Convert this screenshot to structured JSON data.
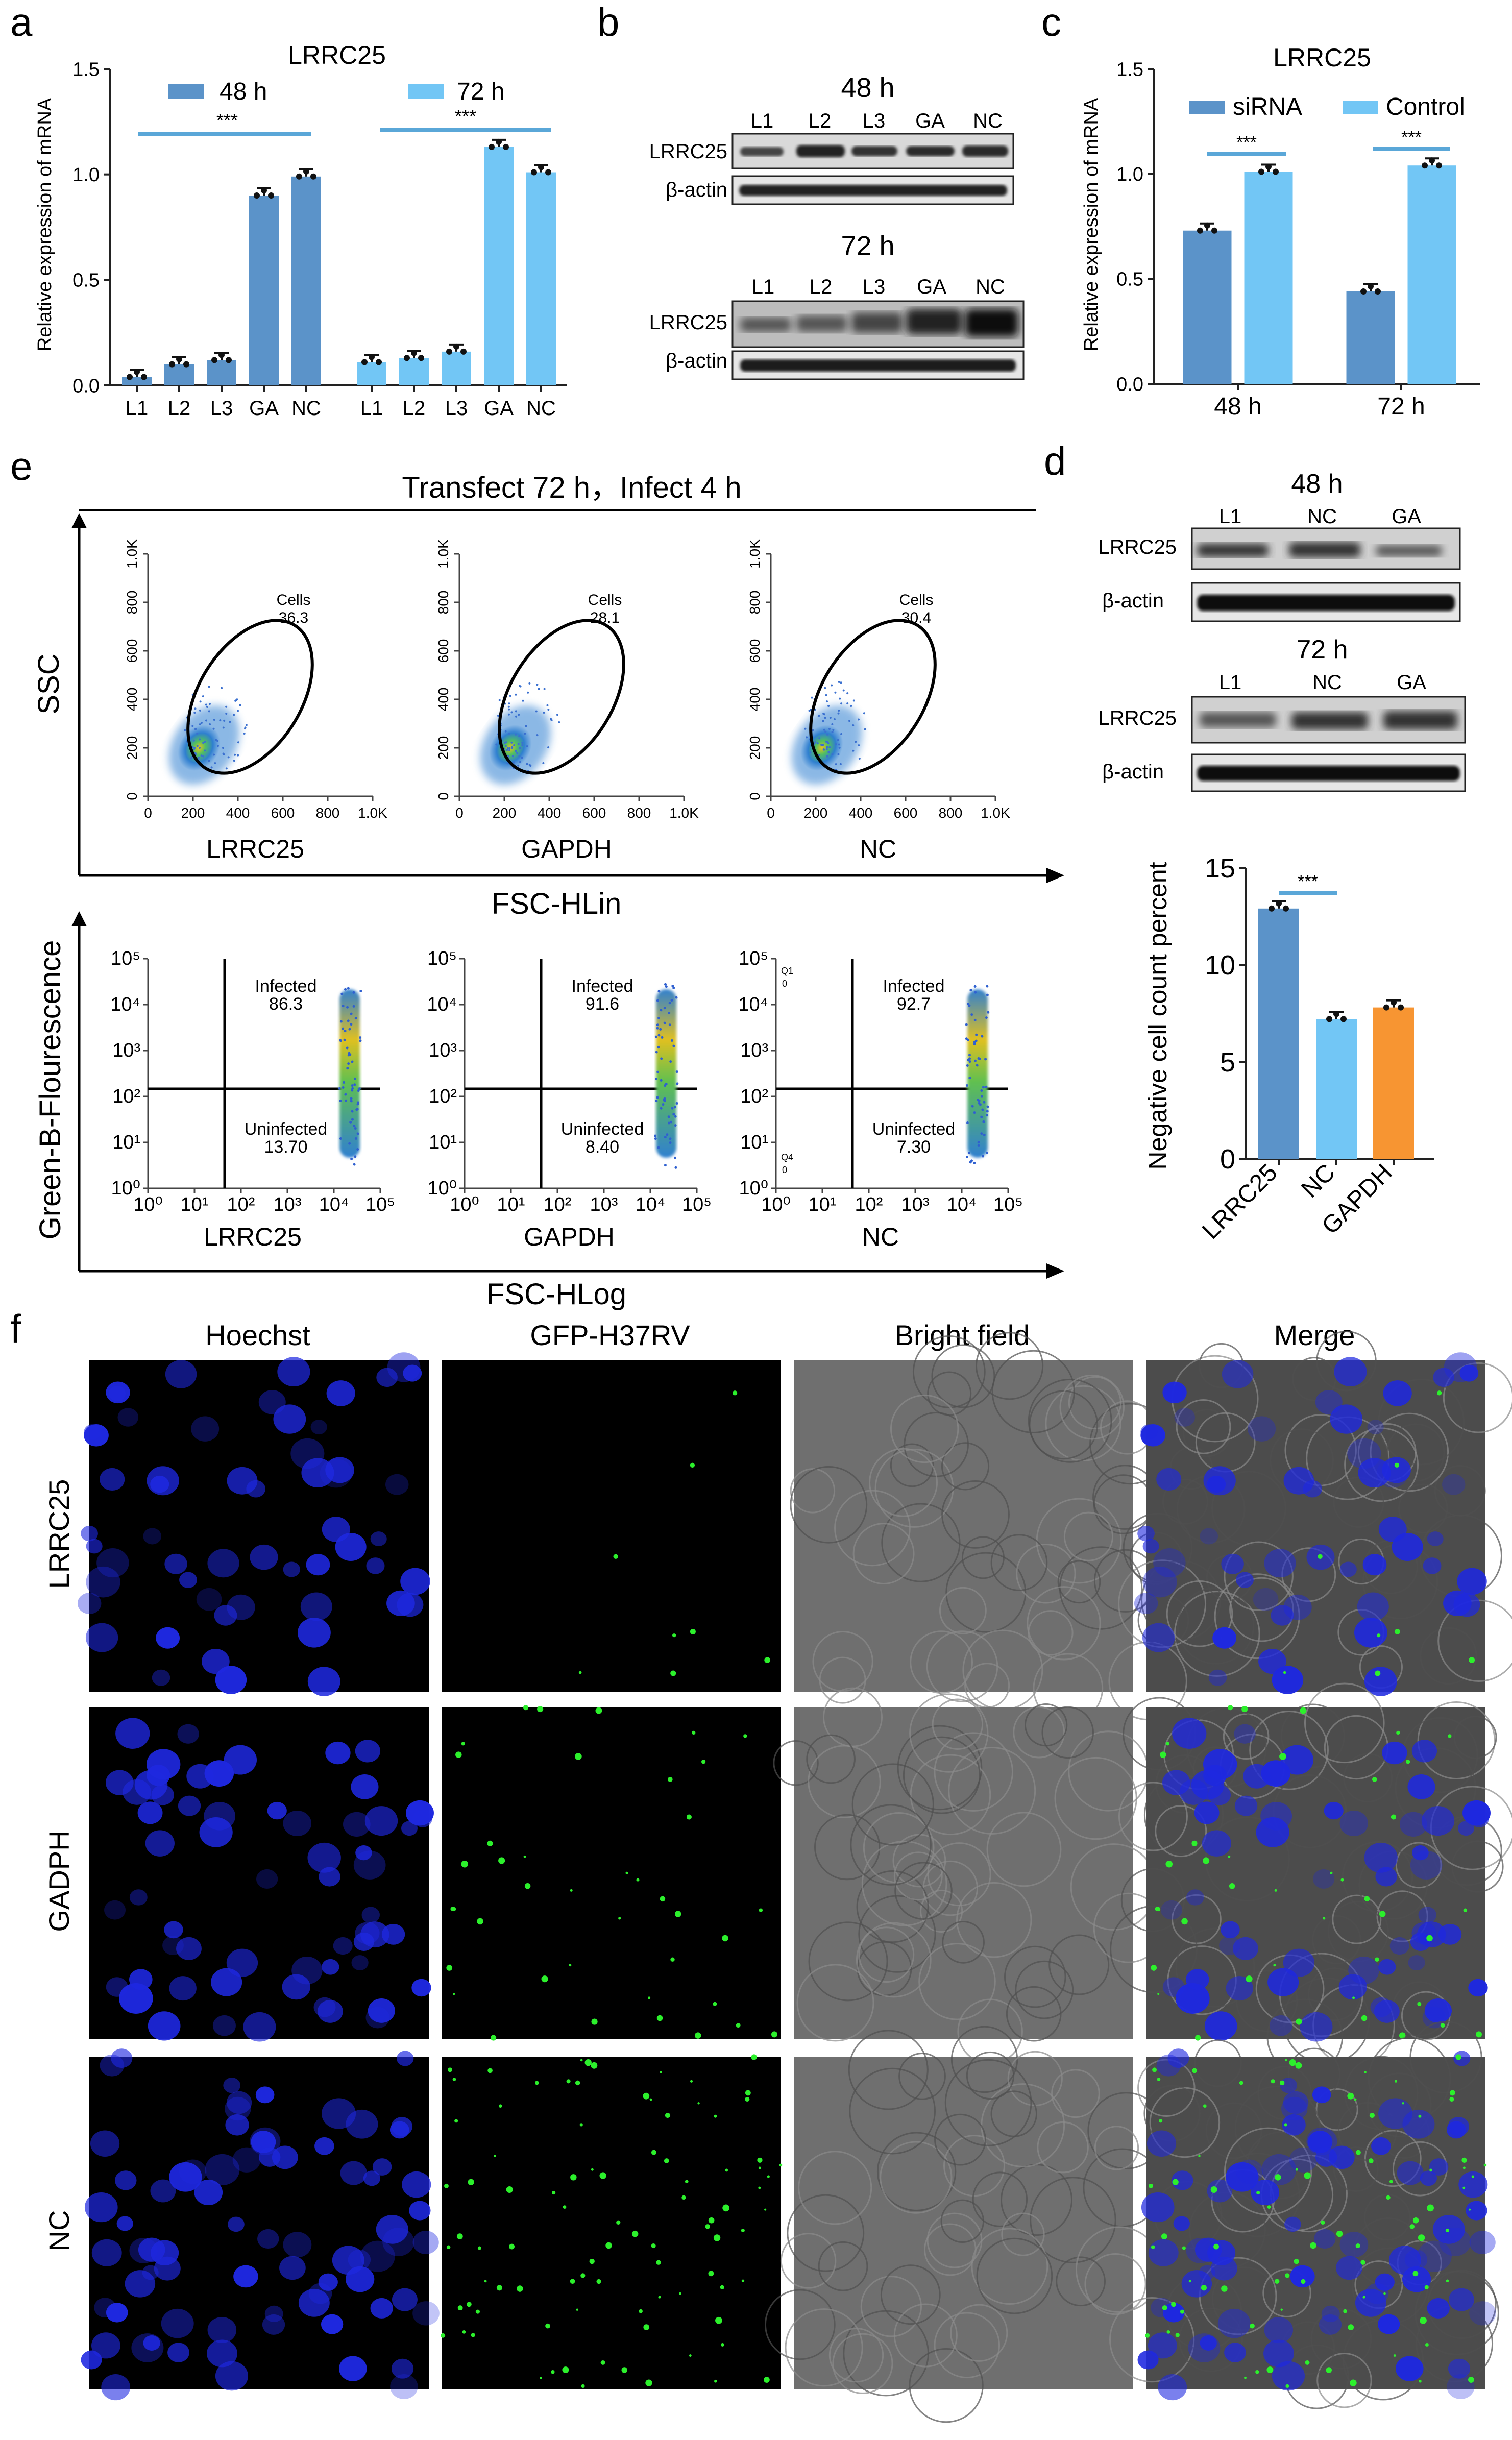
{
  "panels": {
    "a": "a",
    "b": "b",
    "c": "c",
    "d": "d",
    "e": "e",
    "f": "f"
  },
  "colors": {
    "dark_blue": "#5B93C9",
    "light_blue": "#72C6F5",
    "orange": "#F79532",
    "sig_line": "#5AA7D8",
    "fluor_blue": "#1E28E0",
    "fluor_green": "#2CF02C"
  },
  "chart_data": [
    {
      "panel": "a",
      "type": "bar",
      "title": "LRRC25",
      "ylabel": "Relative expression of mRNA",
      "ylim": [
        0,
        1.5
      ],
      "yticks": [
        "0.0",
        "0.5",
        "1.0",
        "1.5"
      ],
      "series": [
        {
          "name": "48 h",
          "categories": [
            "L1",
            "L2",
            "L3",
            "GA",
            "NC"
          ],
          "values": [
            0.04,
            0.1,
            0.12,
            0.9,
            0.99
          ]
        },
        {
          "name": "72 h",
          "categories": [
            "L1",
            "L2",
            "L3",
            "GA",
            "NC"
          ],
          "values": [
            0.11,
            0.13,
            0.16,
            1.13,
            1.01
          ]
        }
      ],
      "significance": [
        "***",
        "***"
      ]
    },
    {
      "panel": "c",
      "type": "bar",
      "title": "LRRC25",
      "ylabel": "Relative expression of mRNA",
      "ylim": [
        0,
        1.5
      ],
      "yticks": [
        "0.0",
        "0.5",
        "1.0",
        "1.5"
      ],
      "categories": [
        "48 h",
        "72 h"
      ],
      "series": [
        {
          "name": "siRNA",
          "values": [
            0.73,
            0.44
          ]
        },
        {
          "name": "Control",
          "values": [
            1.01,
            1.04
          ]
        }
      ],
      "significance": [
        "***",
        "***"
      ]
    },
    {
      "panel": "d",
      "type": "bar",
      "ylabel": "Negative cell count percent",
      "ylim": [
        0,
        15
      ],
      "yticks": [
        "0",
        "5",
        "10",
        "15"
      ],
      "categories": [
        "LRRC25",
        "NC",
        "GAPDH"
      ],
      "values": [
        12.9,
        7.2,
        7.8
      ],
      "significance": [
        "***"
      ]
    }
  ],
  "blot_b": {
    "t48": "48 h",
    "t72": "72 h",
    "lanes": [
      "L1",
      "L2",
      "L3",
      "GA",
      "NC"
    ],
    "row1": "LRRC25",
    "row2": "β-actin"
  },
  "blot_d": {
    "t48": "48 h",
    "t72": "72 h",
    "lanes": [
      "L1",
      "NC",
      "GA"
    ],
    "row1": "LRRC25",
    "row2": "β-actin"
  },
  "flow": {
    "title": "Transfect 72 h，Infect 4 h",
    "ssc_label": "SSC",
    "fsc_lin_label": "FSC-HLin",
    "fsc_log_label": "FSC-HLog",
    "green_label": "Green-B-Flourescence",
    "lin_xticks": [
      "0",
      "200",
      "400",
      "600",
      "800",
      "1.0K"
    ],
    "lin_yticks": [
      "0",
      "200",
      "400",
      "600",
      "800",
      "1.0K"
    ],
    "log_ticks": [
      "10⁰",
      "10¹",
      "10²",
      "10³",
      "10⁴",
      "10⁵"
    ],
    "gate_label": "Cells",
    "infected_label": "Infected",
    "uninfected_label": "Uninfected",
    "q1": "Q1",
    "q4": "Q4",
    "q_zero": "0",
    "samples": [
      {
        "name": "LRRC25",
        "cells": "36.3",
        "infected": "86.3",
        "uninfected": "13.70"
      },
      {
        "name": "GAPDH",
        "cells": "28.1",
        "infected": "91.6",
        "uninfected": "8.40"
      },
      {
        "name": "NC",
        "cells": "30.4",
        "infected": "92.7",
        "uninfected": "7.30"
      }
    ]
  },
  "microscopy": {
    "columns": [
      "Hoechst",
      "GFP-H37RV",
      "Bright field",
      "Merge"
    ],
    "rows": [
      "LRRC25",
      "GADPH",
      "NC"
    ]
  }
}
